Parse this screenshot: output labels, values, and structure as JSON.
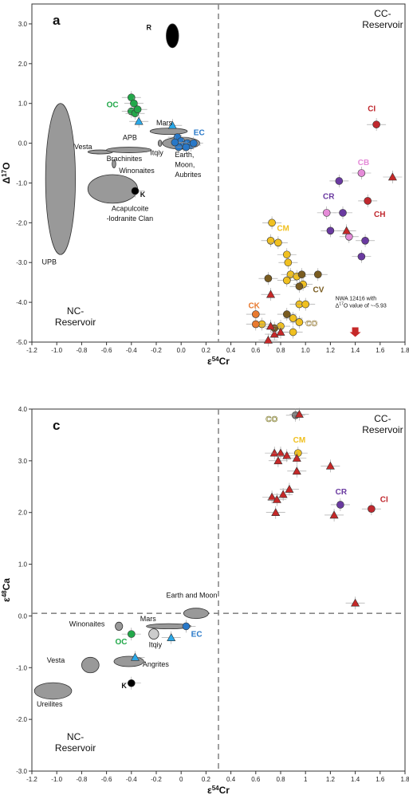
{
  "chart_data": [
    {
      "type": "scatter",
      "panel": "a",
      "xlabel": "ε54Cr",
      "ylabel": "Δ17O",
      "xlim": [
        -1.2,
        1.8
      ],
      "ylim": [
        -5.0,
        3.5
      ],
      "xticks": [
        -1.2,
        -1.0,
        -0.8,
        -0.6,
        -0.4,
        -0.2,
        0.0,
        0.2,
        0.4,
        0.6,
        0.8,
        1.0,
        1.2,
        1.4,
        1.6,
        1.8
      ],
      "yticks": [
        3.0,
        2.0,
        1.0,
        0.0,
        -1.0,
        -2.0,
        -3.0,
        -4.0,
        -5.0
      ],
      "xtick_labels": [
        "-1.2",
        "-1.0",
        "-0.8",
        "-0.6",
        "-0.4",
        "-0.2",
        "0.0",
        "0.2",
        "0.4",
        "0.6",
        "0.8",
        "1.0",
        "1.2",
        "1.4",
        "1.6",
        "1.8"
      ],
      "ytick_labels": [
        "3.0",
        "2.0",
        "1.0",
        "0.0",
        "-1.0",
        "-2.0",
        "-3.0",
        "-4.0",
        "-5.0"
      ],
      "divider_x": 0.3,
      "regions": {
        "cc": [
          "CC-",
          "Reservoir"
        ],
        "nc": [
          "NC-",
          "Reservoir"
        ]
      },
      "annotations": {
        "note": [
          "NWA 12416 with",
          "Δ17O value of ~-5.93"
        ],
        "labels": [
          "R",
          "OC",
          "Mars",
          "EC",
          "APB",
          "Vesta",
          "Itqiy",
          "Brachinites",
          "Winonaites",
          "Earth,",
          "Moon,",
          "Aubrites",
          "K",
          "Acapulcoite",
          "-lodranite Clan",
          "UPB"
        ],
        "groups": [
          "CI",
          "CB",
          "CR",
          "CH",
          "CM",
          "CV",
          "CK",
          "CO"
        ]
      },
      "ellipses": [
        {
          "name": "R",
          "x": -0.07,
          "y": 2.7,
          "rx": 0.05,
          "ry": 0.3,
          "color": "#000000"
        },
        {
          "name": "UPB",
          "x": -0.97,
          "y": -0.9,
          "rx": 0.12,
          "ry": 1.9,
          "color": "#999999"
        },
        {
          "name": "Acapulcoite-lodranite Clan",
          "x": -0.55,
          "y": -1.15,
          "rx": 0.2,
          "ry": 0.36,
          "color": "#999999"
        },
        {
          "name": "Vesta",
          "x": -0.65,
          "y": -0.22,
          "rx": 0.1,
          "ry": 0.05,
          "color": "#999999"
        },
        {
          "name": "APB",
          "x": -0.42,
          "y": -0.17,
          "rx": 0.18,
          "ry": 0.07,
          "color": "#999999"
        },
        {
          "name": "Brachinites",
          "x": -0.54,
          "y": -0.52,
          "rx": 0.015,
          "ry": 0.1,
          "color": "#999999"
        },
        {
          "name": "Mars",
          "x": -0.1,
          "y": 0.3,
          "rx": 0.15,
          "ry": 0.08,
          "color": "#999999"
        },
        {
          "name": "Earth, Moon, Aubrites",
          "x": 0.0,
          "y": 0.0,
          "rx": 0.15,
          "ry": 0.15,
          "color": "#999999"
        },
        {
          "name": "Itqiy",
          "x": -0.17,
          "y": 0.0,
          "rx": 0.015,
          "ry": 0.08,
          "color": "#999999"
        }
      ],
      "series": [
        {
          "name": "OC",
          "marker": "circle",
          "color": "#22a84a",
          "points": [
            [
              -0.4,
              1.15
            ],
            [
              -0.38,
              1.0
            ],
            [
              -0.4,
              0.8
            ],
            [
              -0.37,
              0.75
            ],
            [
              -0.35,
              0.85
            ]
          ]
        },
        {
          "name": "EC",
          "marker": "circle",
          "color": "#2878c8",
          "points": [
            [
              -0.03,
              0.15
            ],
            [
              0.0,
              0.05
            ],
            [
              0.02,
              -0.05
            ],
            [
              0.05,
              0.0
            ],
            [
              0.08,
              -0.05
            ],
            [
              0.1,
              0.0
            ],
            [
              -0.02,
              -0.1
            ],
            [
              0.04,
              -0.1
            ],
            [
              -0.05,
              0.02
            ]
          ]
        },
        {
          "name": "K",
          "marker": "circle",
          "color": "#000000",
          "points": [
            [
              -0.37,
              -1.2
            ]
          ]
        },
        {
          "name": "CI",
          "marker": "circle",
          "color": "#c0282e",
          "points": [
            [
              1.57,
              0.47
            ],
            [
              1.5,
              -1.45
            ]
          ]
        },
        {
          "name": "CB",
          "marker": "circle",
          "color": "#e58bd8",
          "points": [
            [
              1.45,
              -0.75
            ],
            [
              1.17,
              -1.75
            ],
            [
              1.35,
              -2.35
            ]
          ]
        },
        {
          "name": "CR",
          "marker": "circle",
          "color": "#6a3aa0",
          "points": [
            [
              1.27,
              -0.95
            ],
            [
              1.3,
              -1.75
            ],
            [
              1.2,
              -2.2
            ],
            [
              1.48,
              -2.45
            ],
            [
              1.45,
              -2.85
            ]
          ]
        },
        {
          "name": "CM",
          "marker": "circle",
          "color": "#f0c020",
          "points": [
            [
              0.73,
              -2.0
            ],
            [
              0.72,
              -2.45
            ],
            [
              0.78,
              -2.5
            ],
            [
              0.85,
              -2.8
            ],
            [
              0.86,
              -3.0
            ],
            [
              0.88,
              -3.3
            ],
            [
              0.85,
              -3.45
            ],
            [
              0.93,
              -3.35
            ],
            [
              0.98,
              -3.55
            ],
            [
              0.95,
              -4.05
            ],
            [
              1.0,
              -4.05
            ],
            [
              0.9,
              -4.4
            ],
            [
              0.8,
              -4.6
            ],
            [
              0.9,
              -4.75
            ],
            [
              0.95,
              -4.5
            ],
            [
              0.65,
              -4.55
            ]
          ]
        },
        {
          "name": "CV",
          "marker": "circle",
          "color": "#7a5c20",
          "points": [
            [
              0.7,
              -3.4
            ],
            [
              0.97,
              -3.3
            ],
            [
              1.1,
              -3.3
            ],
            [
              0.95,
              -3.6
            ],
            [
              0.85,
              -4.3
            ],
            [
              0.75,
              -4.65
            ]
          ]
        },
        {
          "name": "CK",
          "marker": "circle",
          "color": "#e87a30",
          "points": [
            [
              0.6,
              -4.3
            ],
            [
              0.6,
              -4.55
            ]
          ]
        },
        {
          "name": "ungrouped-NC",
          "marker": "triangle",
          "color": "#2aa8e8",
          "points": [
            [
              -0.34,
              0.55
            ],
            [
              -0.07,
              0.45
            ]
          ]
        },
        {
          "name": "ungrouped-CC",
          "marker": "triangle",
          "color": "#c62828",
          "points": [
            [
              1.7,
              -0.85
            ],
            [
              1.33,
              -2.2
            ],
            [
              0.72,
              -3.8
            ],
            [
              0.72,
              -4.6
            ],
            [
              0.75,
              -4.8
            ],
            [
              0.8,
              -4.75
            ],
            [
              0.7,
              -4.95
            ]
          ]
        }
      ],
      "outlier_arrow": {
        "x": 1.4,
        "y": -4.75,
        "color": "#c62828"
      }
    },
    {
      "type": "scatter",
      "panel": "c",
      "xlabel": "ε54Cr",
      "ylabel": "ε48Ca",
      "xlim": [
        -1.2,
        1.8
      ],
      "ylim": [
        -3.0,
        4.0
      ],
      "xticks": [
        -1.2,
        -1.0,
        -0.8,
        -0.6,
        -0.4,
        -0.2,
        0.0,
        0.2,
        0.4,
        0.6,
        0.8,
        1.0,
        1.2,
        1.4,
        1.6,
        1.8
      ],
      "yticks": [
        4.0,
        3.0,
        2.0,
        1.0,
        0.0,
        -1.0,
        -2.0,
        -3.0
      ],
      "xtick_labels": [
        "-1.2",
        "-1.0",
        "-0.8",
        "-0.6",
        "-0.4",
        "-0.2",
        "0",
        "0.2",
        "0.4",
        "0.6",
        "0.8",
        "1",
        "1.2",
        "1.4",
        "1.6",
        "1.8"
      ],
      "ytick_labels": [
        "4.0",
        "3.0",
        "2.0",
        "1.0",
        "0.0",
        "-1.0",
        "-2.0",
        "-3.0"
      ],
      "divider_x": 0.3,
      "divider_y": 0.05,
      "regions": {
        "cc": [
          "CC-",
          "Reservoir"
        ],
        "nc": [
          "NC-",
          "Reservoir"
        ]
      },
      "annotations": {
        "labels": [
          "Earth and Moon",
          "Winonaites",
          "Mars",
          "Itqiy",
          "Angrites",
          "Vesta",
          "K",
          "Ureilites"
        ],
        "groups": [
          "CO",
          "CM",
          "CR",
          "CI",
          "OC",
          "EC"
        ]
      },
      "ellipses": [
        {
          "name": "Earth and Moon",
          "x": 0.12,
          "y": 0.05,
          "rx": 0.1,
          "ry": 0.1,
          "color": "#999999"
        },
        {
          "name": "Mars",
          "x": -0.1,
          "y": -0.2,
          "rx": 0.18,
          "ry": 0.05,
          "color": "#999999"
        },
        {
          "name": "Winonaites",
          "x": -0.5,
          "y": -0.2,
          "rx": 0.03,
          "ry": 0.08,
          "color": "#999999"
        },
        {
          "name": "Itqiy",
          "x": -0.22,
          "y": -0.35,
          "rx": 0.04,
          "ry": 0.1,
          "color": "#cccccc"
        },
        {
          "name": "Angrites",
          "x": -0.42,
          "y": -0.88,
          "rx": 0.12,
          "ry": 0.1,
          "color": "#999999"
        },
        {
          "name": "Vesta",
          "x": -0.73,
          "y": -0.95,
          "rx": 0.07,
          "ry": 0.15,
          "color": "#999999"
        },
        {
          "name": "Ureilites",
          "x": -1.03,
          "y": -1.45,
          "rx": 0.15,
          "ry": 0.16,
          "color": "#999999"
        }
      ],
      "series": [
        {
          "name": "OC",
          "marker": "circle",
          "color": "#22a84a",
          "points": [
            [
              -0.4,
              -0.35
            ]
          ]
        },
        {
          "name": "EC",
          "marker": "circle",
          "color": "#2878c8",
          "points": [
            [
              0.04,
              -0.2
            ]
          ]
        },
        {
          "name": "K",
          "marker": "circle",
          "color": "#000000",
          "points": [
            [
              -0.4,
              -1.3
            ]
          ]
        },
        {
          "name": "CO",
          "marker": "circle",
          "color": "#7f7f7f",
          "points": [
            [
              0.92,
              3.88
            ]
          ]
        },
        {
          "name": "CM",
          "marker": "circle",
          "color": "#f0c020",
          "points": [
            [
              0.94,
              3.15
            ]
          ]
        },
        {
          "name": "CR",
          "marker": "circle",
          "color": "#6a3aa0",
          "points": [
            [
              1.28,
              2.15
            ]
          ]
        },
        {
          "name": "CI",
          "marker": "circle",
          "color": "#c0282e",
          "points": [
            [
              1.53,
              2.07
            ]
          ]
        },
        {
          "name": "ungrouped-NC",
          "marker": "triangle",
          "color": "#2aa8e8",
          "points": [
            [
              -0.08,
              -0.42
            ],
            [
              -0.37,
              -0.8
            ]
          ]
        },
        {
          "name": "ungrouped-CC",
          "marker": "triangle",
          "color": "#c62828",
          "points": [
            [
              0.95,
              3.9
            ],
            [
              0.75,
              3.15
            ],
            [
              0.8,
              3.15
            ],
            [
              0.85,
              3.1
            ],
            [
              0.93,
              3.05
            ],
            [
              0.78,
              3.0
            ],
            [
              0.93,
              2.8
            ],
            [
              0.87,
              2.45
            ],
            [
              0.82,
              2.35
            ],
            [
              0.73,
              2.3
            ],
            [
              0.77,
              2.25
            ],
            [
              0.76,
              2.0
            ],
            [
              1.2,
              2.9
            ],
            [
              1.23,
              1.95
            ],
            [
              1.4,
              0.25
            ]
          ]
        }
      ]
    }
  ]
}
